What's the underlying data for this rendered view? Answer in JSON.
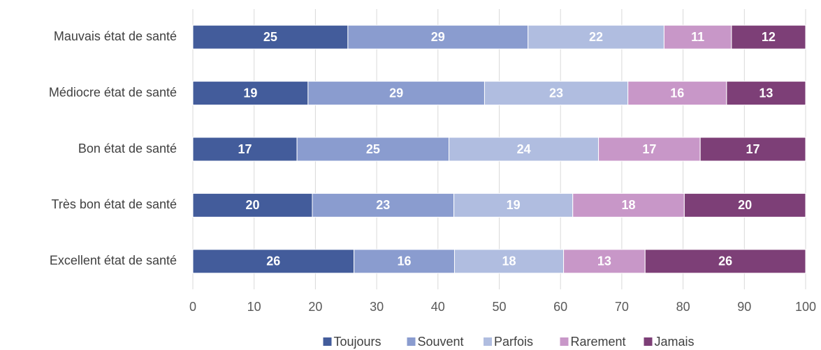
{
  "chart_data": {
    "type": "stacked-bar-horizontal",
    "categories": [
      "Mauvais état de santé",
      "Médiocre état de santé",
      "Bon état de santé",
      "Très bon état de santé",
      "Excellent état de santé"
    ],
    "series": [
      {
        "name": "Toujours",
        "color": "#435c9b",
        "values": [
          25.3,
          18.8,
          17.0,
          19.5,
          26.3
        ],
        "value_labels": [
          "25",
          "19",
          "17",
          "20",
          "26"
        ]
      },
      {
        "name": "Souvent",
        "color": "#8a9ccf",
        "values": [
          29.4,
          28.8,
          24.8,
          23.1,
          16.4
        ],
        "value_labels": [
          "29",
          "29",
          "25",
          "23",
          "16"
        ]
      },
      {
        "name": "Parfois",
        "color": "#b0bde0",
        "values": [
          22.2,
          23.4,
          24.4,
          19.4,
          17.8
        ],
        "value_labels": [
          "22",
          "23",
          "24",
          "19",
          "18"
        ]
      },
      {
        "name": "Rarement",
        "color": "#c897c8",
        "values": [
          11.0,
          16.1,
          16.6,
          18.2,
          13.3
        ],
        "value_labels": [
          "11",
          "16",
          "17",
          "18",
          "13"
        ]
      },
      {
        "name": "Jamais",
        "color": "#7d3f77",
        "values": [
          12.1,
          12.9,
          17.2,
          19.8,
          26.2
        ],
        "value_labels": [
          "12",
          "13",
          "17",
          "20",
          "26"
        ]
      }
    ],
    "xlim": [
      0,
      100
    ],
    "xticks": [
      0,
      10,
      20,
      30,
      40,
      50,
      60,
      70,
      80,
      90,
      100
    ],
    "grid": true,
    "legend": "bottom"
  }
}
